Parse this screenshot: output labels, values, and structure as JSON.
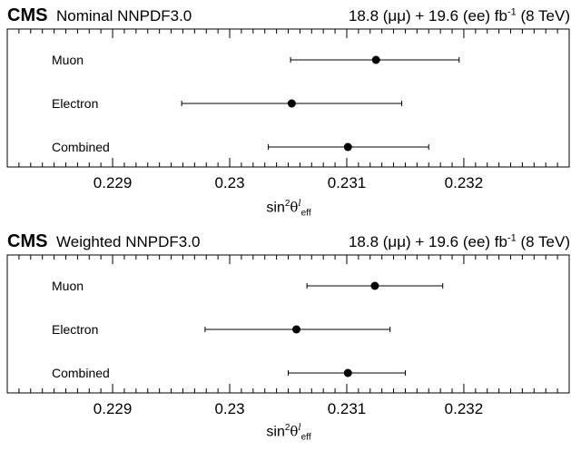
{
  "chart_data": [
    {
      "type": "scatter",
      "experiment": "CMS",
      "title": "Nominal NNPDF3.0",
      "luminosity": "18.8 (μμ) + 19.6 (ee) fb",
      "lumi_exponent": "-1",
      "energy": "(8 TeV)",
      "xlabel": "sin²θ^ℓ_eff",
      "xlim": [
        0.2281,
        0.2329
      ],
      "xticks": [
        "0.229",
        "0.23",
        "0.231",
        "0.232"
      ],
      "categories": [
        "Muon",
        "Electron",
        "Combined"
      ],
      "values": [
        0.23125,
        0.23053,
        0.23101
      ],
      "err_low": [
        0.00073,
        0.00094,
        0.00068
      ],
      "err_high": [
        0.00071,
        0.00094,
        0.00069
      ]
    },
    {
      "type": "scatter",
      "experiment": "CMS",
      "title": "Weighted NNPDF3.0",
      "luminosity": "18.8 (μμ) + 19.6 (ee) fb",
      "lumi_exponent": "-1",
      "energy": "(8 TeV)",
      "xlabel": "sin²θ^ℓ_eff",
      "xlim": [
        0.2281,
        0.2329
      ],
      "xticks": [
        "0.229",
        "0.23",
        "0.231",
        "0.232"
      ],
      "categories": [
        "Muon",
        "Electron",
        "Combined"
      ],
      "values": [
        0.23124,
        0.23057,
        0.23101
      ],
      "err_low": [
        0.00058,
        0.00078,
        0.00051
      ],
      "err_high": [
        0.00058,
        0.0008,
        0.00049
      ]
    }
  ],
  "xlabel_parts": {
    "sin": "sin",
    "sup": "2",
    "theta": "θ",
    "ell": "l",
    "sub": "eff"
  }
}
